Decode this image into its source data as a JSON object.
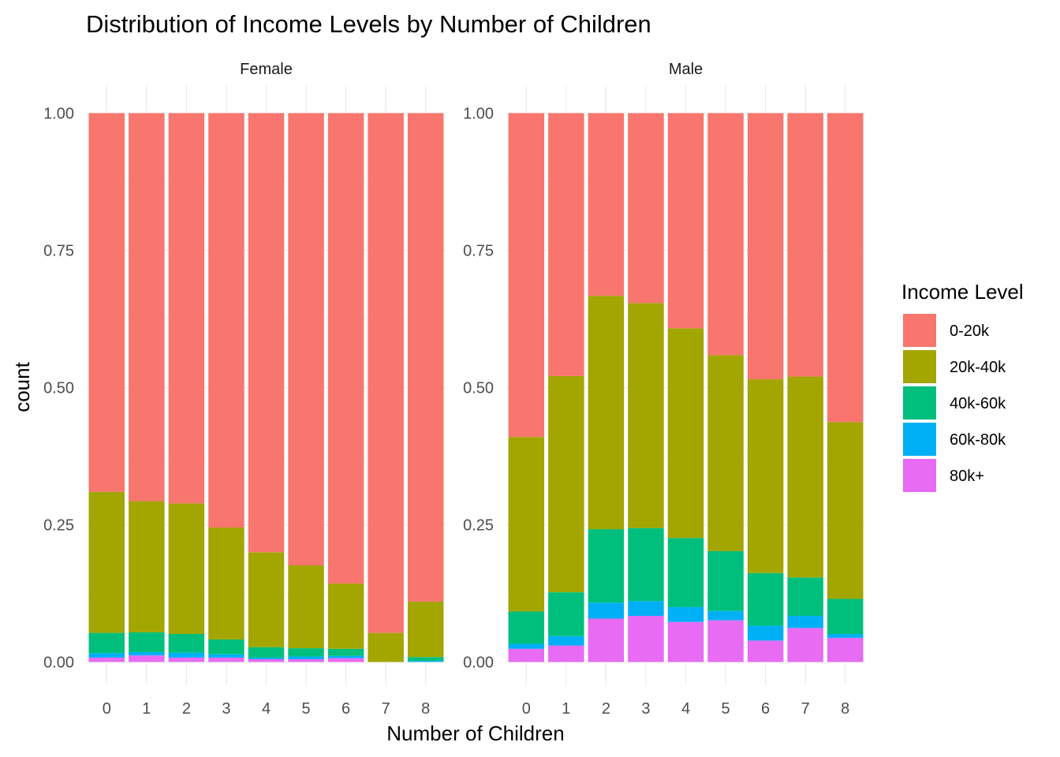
{
  "chart_data": {
    "type": "bar",
    "stacking": "fill",
    "title": "Distribution of Income Levels by Number of Children",
    "xlabel": "Number of Children",
    "ylabel": "count",
    "ylim": [
      0,
      1
    ],
    "y_ticks": [
      "0.00",
      "0.25",
      "0.50",
      "0.75",
      "1.00"
    ],
    "grid": true,
    "legend": {
      "title": "Income Level",
      "position": "right",
      "items": [
        {
          "label": "0-20k",
          "color": "#F8766D"
        },
        {
          "label": "20k-40k",
          "color": "#A3A500"
        },
        {
          "label": "40k-60k",
          "color": "#00BF7D"
        },
        {
          "label": "60k-80k",
          "color": "#00B0F6"
        },
        {
          "label": "80k+",
          "color": "#E76BF3"
        }
      ]
    },
    "categories": [
      "0",
      "1",
      "2",
      "3",
      "4",
      "5",
      "6",
      "7",
      "8"
    ],
    "panels": [
      {
        "label": "Female",
        "series": [
          {
            "name": "80k+",
            "values": [
              0.008,
              0.012,
              0.008,
              0.008,
              0.005,
              0.005,
              0.007,
              0.0,
              0.0
            ]
          },
          {
            "name": "60k-80k",
            "values": [
              0.008,
              0.006,
              0.009,
              0.006,
              0.003,
              0.005,
              0.004,
              0.0,
              0.002
            ]
          },
          {
            "name": "40k-60k",
            "values": [
              0.037,
              0.036,
              0.034,
              0.027,
              0.019,
              0.015,
              0.013,
              0.0,
              0.007
            ]
          },
          {
            "name": "20k-40k",
            "values": [
              0.257,
              0.239,
              0.238,
              0.204,
              0.173,
              0.151,
              0.119,
              0.053,
              0.101
            ]
          },
          {
            "name": "0-20k",
            "values": [
              0.69,
              0.707,
              0.711,
              0.755,
              0.8,
              0.824,
              0.857,
              0.947,
              0.89
            ]
          }
        ]
      },
      {
        "label": "Male",
        "series": [
          {
            "name": "80k+",
            "values": [
              0.024,
              0.03,
              0.079,
              0.084,
              0.073,
              0.076,
              0.039,
              0.062,
              0.044
            ]
          },
          {
            "name": "60k-80k",
            "values": [
              0.009,
              0.017,
              0.029,
              0.027,
              0.027,
              0.017,
              0.027,
              0.022,
              0.007
            ]
          },
          {
            "name": "40k-60k",
            "values": [
              0.059,
              0.08,
              0.134,
              0.133,
              0.126,
              0.109,
              0.096,
              0.07,
              0.064
            ]
          },
          {
            "name": "20k-40k",
            "values": [
              0.318,
              0.394,
              0.425,
              0.41,
              0.382,
              0.357,
              0.353,
              0.366,
              0.322
            ]
          },
          {
            "name": "0-20k",
            "values": [
              0.59,
              0.479,
              0.333,
              0.346,
              0.392,
              0.441,
              0.485,
              0.48,
              0.563
            ]
          }
        ]
      }
    ]
  }
}
